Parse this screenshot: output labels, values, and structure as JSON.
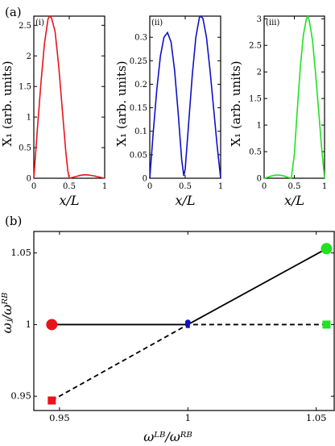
{
  "panel_a_label": "(a)",
  "panel_b_label": "(b)",
  "chart_data": [
    {
      "type": "line",
      "panel": "(i)",
      "ylabel": "X₁ (arb. units)",
      "xlabel": "x/L",
      "xlim": [
        0,
        1
      ],
      "ylim": [
        0,
        2.65
      ],
      "xticks": [
        "0",
        "0.5",
        "1"
      ],
      "yticks": [
        "0",
        "0.5",
        "1",
        "1.5",
        "2",
        "2.5"
      ],
      "color": "#e8141b",
      "series": [
        {
          "x": [
            0,
            0.05,
            0.1,
            0.15,
            0.2,
            0.22,
            0.25,
            0.3,
            0.35,
            0.4,
            0.45,
            0.48,
            0.5,
            0.55,
            0.6,
            0.65,
            0.7,
            0.75,
            0.8,
            0.85,
            0.9,
            0.95,
            1
          ],
          "y": [
            0,
            0.8,
            1.55,
            2.2,
            2.6,
            2.65,
            2.62,
            2.4,
            1.85,
            1.15,
            0.45,
            0.12,
            0,
            0.015,
            0.03,
            0.045,
            0.055,
            0.055,
            0.048,
            0.038,
            0.025,
            0.012,
            0
          ]
        }
      ]
    },
    {
      "type": "line",
      "panel": "(ii)",
      "ylabel": "X₁ (arb. units)",
      "xlabel": "x/L",
      "xlim": [
        0,
        1
      ],
      "ylim": [
        0,
        0.345
      ],
      "xticks": [
        "0",
        "0.5",
        "1"
      ],
      "yticks": [
        "0",
        "0.05",
        "0.1",
        "0.15",
        "0.2",
        "0.25",
        "0.3"
      ],
      "color": "#1010c8",
      "series": [
        {
          "x": [
            0,
            0.05,
            0.1,
            0.15,
            0.2,
            0.25,
            0.3,
            0.35,
            0.4,
            0.45,
            0.48,
            0.5,
            0.55,
            0.6,
            0.65,
            0.7,
            0.72,
            0.75,
            0.8,
            0.85,
            0.9,
            0.95,
            1
          ],
          "y": [
            0,
            0.1,
            0.19,
            0.26,
            0.3,
            0.31,
            0.29,
            0.23,
            0.14,
            0.04,
            0.005,
            0.02,
            0.12,
            0.22,
            0.3,
            0.342,
            0.345,
            0.34,
            0.3,
            0.23,
            0.15,
            0.07,
            0
          ]
        }
      ]
    },
    {
      "type": "line",
      "panel": "(iii)",
      "ylabel": "X₁ (arb. units)",
      "xlabel": "x/L",
      "xlim": [
        0,
        1
      ],
      "ylim": [
        0,
        3.05
      ],
      "xticks": [
        "0",
        "0.5",
        "1"
      ],
      "yticks": [
        "0",
        "0.5",
        "1",
        "1.5",
        "2",
        "2.5",
        "3"
      ],
      "color": "#22e022",
      "series": [
        {
          "x": [
            0,
            0.05,
            0.1,
            0.15,
            0.2,
            0.25,
            0.3,
            0.35,
            0.4,
            0.45,
            0.5,
            0.55,
            0.6,
            0.65,
            0.7,
            0.72,
            0.75,
            0.8,
            0.85,
            0.9,
            0.95,
            1
          ],
          "y": [
            0,
            0.015,
            0.035,
            0.05,
            0.06,
            0.06,
            0.05,
            0.035,
            0.015,
            0,
            0.45,
            1.3,
            2.1,
            2.7,
            3.0,
            3.05,
            2.95,
            2.6,
            2.0,
            1.3,
            0.6,
            0
          ]
        }
      ]
    },
    {
      "type": "line",
      "panel": "(b)",
      "xlabel": "ωᴸᴮ/ωᴿᴮ",
      "ylabel": "ωⱼ/ωᴿᴮ",
      "xlim": [
        0.94,
        1.057
      ],
      "ylim": [
        0.94,
        1.065
      ],
      "xticks": [
        "0.95",
        "1",
        "1.05"
      ],
      "yticks": [
        "0.95",
        "1",
        "1.05"
      ],
      "series": [
        {
          "style": "solid",
          "x": [
            0.947,
            1.0,
            1.054
          ],
          "y": [
            1.0,
            1.0,
            1.053
          ]
        },
        {
          "style": "dashed",
          "x": [
            0.947,
            1.0,
            1.054
          ],
          "y": [
            0.947,
            1.0,
            1.0
          ]
        }
      ],
      "markers": [
        {
          "shape": "circle",
          "color": "#e8141b",
          "x": 0.947,
          "y": 1.0
        },
        {
          "shape": "square",
          "color": "#e8141b",
          "x": 0.947,
          "y": 0.947
        },
        {
          "shape": "circle",
          "color": "#1010c8",
          "x": 1.0,
          "y": 1.0015
        },
        {
          "shape": "square",
          "color": "#1010c8",
          "x": 1.0,
          "y": 0.999
        },
        {
          "shape": "circle",
          "color": "#22e022",
          "x": 1.054,
          "y": 1.053
        },
        {
          "shape": "square",
          "color": "#22e022",
          "x": 1.054,
          "y": 1.0
        }
      ]
    }
  ]
}
